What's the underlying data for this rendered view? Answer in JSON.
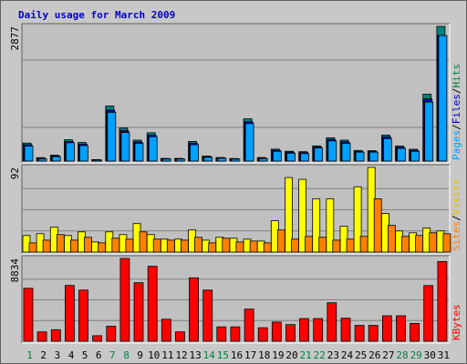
{
  "chart_data": {
    "type": "bar",
    "title": "Daily usage for March 2009",
    "categories": [
      "1",
      "2",
      "3",
      "4",
      "5",
      "6",
      "7",
      "8",
      "9",
      "10",
      "11",
      "12",
      "13",
      "14",
      "15",
      "16",
      "17",
      "18",
      "19",
      "20",
      "21",
      "22",
      "23",
      "24",
      "25",
      "26",
      "27",
      "28",
      "29",
      "30",
      "31"
    ],
    "weekend_days": [
      "1",
      "7",
      "8",
      "14",
      "15",
      "21",
      "22",
      "28",
      "29"
    ],
    "day_label_colors": {
      "weekday": "#000000",
      "weekend": "#008040"
    },
    "panels": [
      {
        "name": "hits-files-pages",
        "max_label": "2877",
        "ylim": [
          0,
          2877
        ],
        "legend": [
          {
            "text": "Pages",
            "color": "#00a0ff"
          },
          {
            "text": "/",
            "color": "#000000"
          },
          {
            "text": "Files",
            "color": "#0000cc"
          },
          {
            "text": "/",
            "color": "#000000"
          },
          {
            "text": "Hits",
            "color": "#008040"
          }
        ],
        "series": [
          {
            "name": "Hits",
            "color": "#008080",
            "values": [
              385,
              73,
              124,
              454,
              397,
              32,
              1177,
              706,
              448,
              605,
              57,
              57,
              420,
              106,
              75,
              54,
              902,
              75,
              254,
              210,
              200,
              324,
              498,
              448,
              227,
              222,
              556,
              320,
              252,
              1429,
              2877
            ]
          },
          {
            "name": "Files",
            "color": "#0000cc",
            "values": [
              350,
              55,
              110,
              420,
              360,
              28,
              1090,
              650,
              410,
              550,
              50,
              50,
              380,
              95,
              70,
              50,
              840,
              65,
              230,
              190,
              180,
              300,
              460,
              410,
              205,
              205,
              515,
              295,
              230,
              1330,
              2680
            ]
          },
          {
            "name": "Pages",
            "color": "#00a0ff",
            "values": [
              320,
              45,
              95,
              390,
              330,
              22,
              1040,
              610,
              380,
              520,
              42,
              42,
              350,
              80,
              58,
              40,
              800,
              52,
              210,
              170,
              160,
              280,
              430,
              380,
              190,
              190,
              480,
              270,
              210,
              1260,
              2680
            ]
          }
        ]
      },
      {
        "name": "visits-sites",
        "max_label": "92",
        "ylim": [
          0,
          92
        ],
        "legend": [
          {
            "text": "Sites",
            "color": "#ff8000"
          },
          {
            "text": "/",
            "color": "#000000"
          },
          {
            "text": "Visits",
            "color": "#e0c000"
          }
        ],
        "series": [
          {
            "name": "Visits",
            "color": "#ffff00",
            "values": [
              18,
              20,
              27,
              18,
              22,
              11,
              22,
              19,
              31,
              19,
              14,
              14,
              24,
              13,
              16,
              15,
              14,
              12,
              34,
              81,
              79,
              58,
              58,
              28,
              71,
              92,
              42,
              23,
              21,
              26,
              23
            ]
          },
          {
            "name": "Sites",
            "color": "#ff8000",
            "values": [
              10,
              13,
              19,
              13,
              16,
              10,
              15,
              14,
              22,
              14,
              13,
              13,
              16,
              10,
              15,
              11,
              12,
              10,
              24,
              14,
              17,
              16,
              13,
              14,
              17,
              58,
              29,
              17,
              18,
              21,
              20
            ]
          }
        ]
      },
      {
        "name": "kbytes",
        "max_label": "8834",
        "ylim": [
          0,
          8834
        ],
        "legend": [
          {
            "text": "KBytes",
            "color": "#ff0000"
          }
        ],
        "series": [
          {
            "name": "KBytes",
            "color": "#ff0000",
            "values": [
              5650,
              1000,
              1230,
              5950,
              5460,
              590,
              1600,
              8834,
              6240,
              8000,
              2350,
              1000,
              6770,
              5460,
              1530,
              1530,
              3430,
              1450,
              2050,
              1780,
              2420,
              2420,
              4110,
              2460,
              1690,
              1690,
              2720,
              2720,
              1900,
              5940,
              8500
            ]
          }
        ]
      }
    ]
  }
}
